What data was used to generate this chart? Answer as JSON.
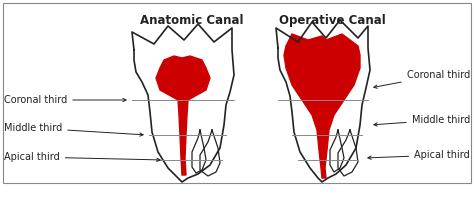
{
  "title_left": "Anatomic Canal",
  "title_right": "Operative Canal",
  "bg_color": "#ffffff",
  "tooth_outline_color": "#222222",
  "canal_fill_color": "#cc0000",
  "label_color": "#222222",
  "border_color": "#888888",
  "labels_left": [
    "Coronal third",
    "Middle third",
    "Apical third"
  ],
  "labels_right": [
    "Coronal third",
    "Middle third",
    "Apical third"
  ],
  "title_fontsize": 8.5,
  "label_fontsize": 7.0,
  "figsize": [
    4.74,
    2.1
  ],
  "dpi": 100
}
